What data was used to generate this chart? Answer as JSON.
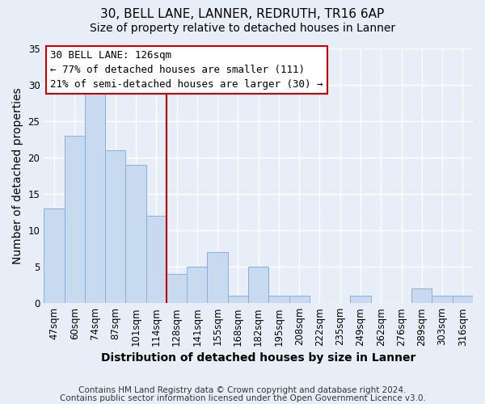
{
  "title_line1": "30, BELL LANE, LANNER, REDRUTH, TR16 6AP",
  "title_line2": "Size of property relative to detached houses in Lanner",
  "xlabel": "Distribution of detached houses by size in Lanner",
  "ylabel": "Number of detached properties",
  "bar_color": "#c8daf0",
  "bar_edge_color": "#8ab0d8",
  "categories": [
    "47sqm",
    "60sqm",
    "74sqm",
    "87sqm",
    "101sqm",
    "114sqm",
    "128sqm",
    "141sqm",
    "155sqm",
    "168sqm",
    "182sqm",
    "195sqm",
    "208sqm",
    "222sqm",
    "235sqm",
    "249sqm",
    "262sqm",
    "276sqm",
    "289sqm",
    "303sqm",
    "316sqm"
  ],
  "values": [
    13,
    23,
    29,
    21,
    19,
    12,
    4,
    5,
    7,
    1,
    5,
    1,
    1,
    0,
    0,
    1,
    0,
    0,
    2,
    1,
    1
  ],
  "ylim": [
    0,
    35
  ],
  "yticks": [
    0,
    5,
    10,
    15,
    20,
    25,
    30,
    35
  ],
  "vline_color": "#cc0000",
  "annotation_title": "30 BELL LANE: 126sqm",
  "annotation_line1": "← 77% of detached houses are smaller (111)",
  "annotation_line2": "21% of semi-detached houses are larger (30) →",
  "annotation_box_color": "#ffffff",
  "annotation_box_edge": "#cc0000",
  "footnote_line1": "Contains HM Land Registry data © Crown copyright and database right 2024.",
  "footnote_line2": "Contains public sector information licensed under the Open Government Licence v3.0.",
  "background_color": "#e8eef8",
  "plot_bg_color": "#e8eef8",
  "grid_color": "#ffffff",
  "title_fontsize": 11,
  "subtitle_fontsize": 10,
  "axis_label_fontsize": 10,
  "tick_fontsize": 8.5,
  "annotation_title_fontsize": 9,
  "annotation_body_fontsize": 9,
  "footnote_fontsize": 7.5
}
